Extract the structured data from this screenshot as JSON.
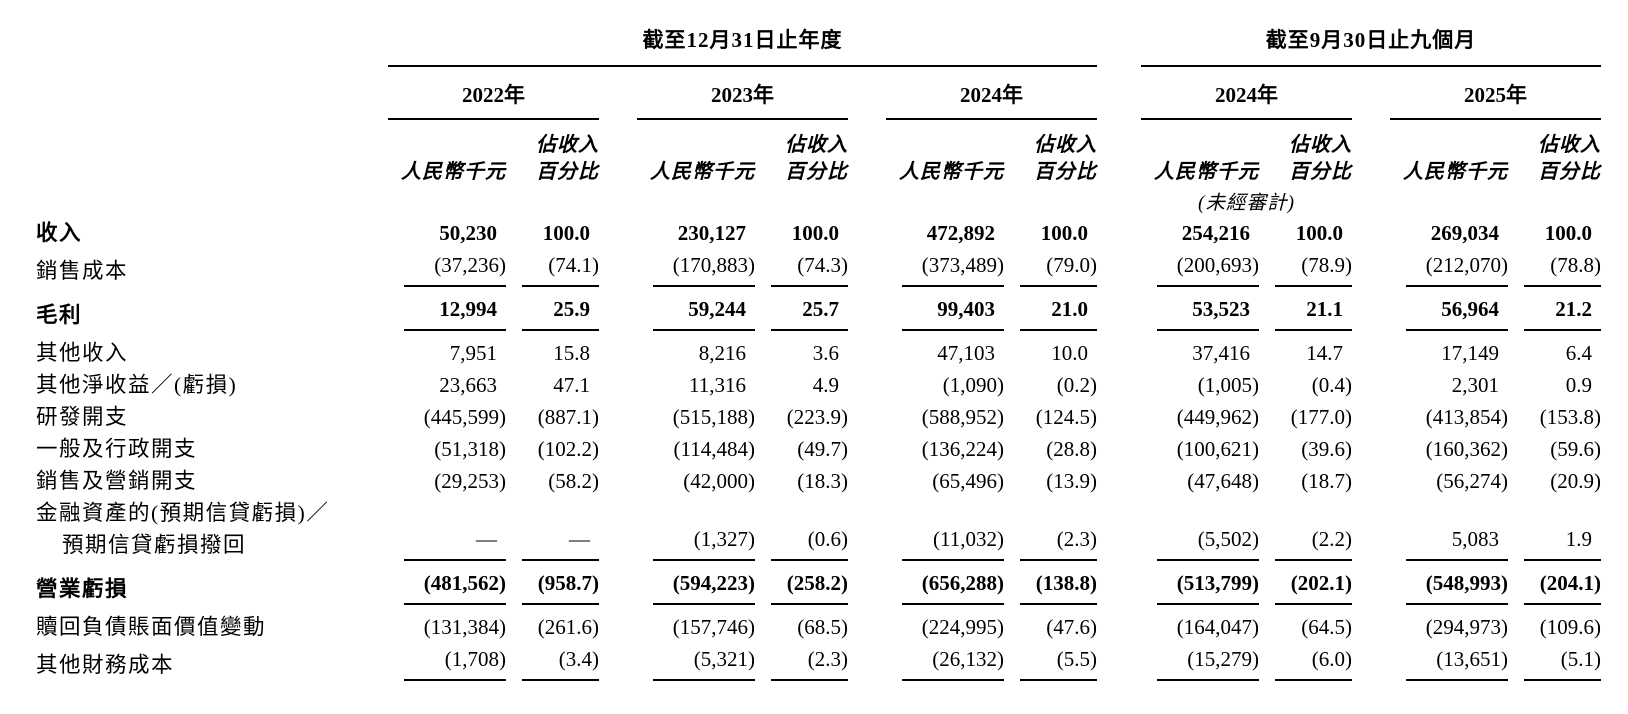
{
  "page": {
    "background": "#ffffff",
    "text_color": "#000000"
  },
  "table": {
    "period_groups": [
      {
        "title": "截至12月31日止年度",
        "years": [
          "2022年",
          "2023年",
          "2024年"
        ]
      },
      {
        "title": "截至9月30日止九個月",
        "years": [
          "2024年",
          "2025年"
        ]
      }
    ],
    "column_subheaders": {
      "amount": "人民幣千元",
      "pct_line1": "佔收入",
      "pct_line2": "百分比"
    },
    "unaudited_note": "(未經審計)",
    "rows": [
      {
        "label": "收入",
        "bold": true,
        "rule_after": false,
        "values": [
          "50,230",
          "100.0",
          "230,127",
          "100.0",
          "472,892",
          "100.0",
          "254,216",
          "100.0",
          "269,034",
          "100.0"
        ]
      },
      {
        "label": "銷售成本",
        "bold": false,
        "rule_after": true,
        "values": [
          "(37,236)",
          "(74.1)",
          "(170,883)",
          "(74.3)",
          "(373,489)",
          "(79.0)",
          "(200,693)",
          "(78.9)",
          "(212,070)",
          "(78.8)"
        ]
      },
      {
        "label": "毛利",
        "bold": true,
        "rule_after": true,
        "values": [
          "12,994",
          "25.9",
          "59,244",
          "25.7",
          "99,403",
          "21.0",
          "53,523",
          "21.1",
          "56,964",
          "21.2"
        ]
      },
      {
        "label": "其他收入",
        "bold": false,
        "rule_after": false,
        "values": [
          "7,951",
          "15.8",
          "8,216",
          "3.6",
          "47,103",
          "10.0",
          "37,416",
          "14.7",
          "17,149",
          "6.4"
        ]
      },
      {
        "label": "其他淨收益／(虧損)",
        "bold": false,
        "rule_after": false,
        "values": [
          "23,663",
          "47.1",
          "11,316",
          "4.9",
          "(1,090)",
          "(0.2)",
          "(1,005)",
          "(0.4)",
          "2,301",
          "0.9"
        ]
      },
      {
        "label": "研發開支",
        "bold": false,
        "rule_after": false,
        "values": [
          "(445,599)",
          "(887.1)",
          "(515,188)",
          "(223.9)",
          "(588,952)",
          "(124.5)",
          "(449,962)",
          "(177.0)",
          "(413,854)",
          "(153.8)"
        ]
      },
      {
        "label": "一般及行政開支",
        "bold": false,
        "rule_after": false,
        "values": [
          "(51,318)",
          "(102.2)",
          "(114,484)",
          "(49.7)",
          "(136,224)",
          "(28.8)",
          "(100,621)",
          "(39.6)",
          "(160,362)",
          "(59.6)"
        ]
      },
      {
        "label": "銷售及營銷開支",
        "bold": false,
        "rule_after": false,
        "values": [
          "(29,253)",
          "(58.2)",
          "(42,000)",
          "(18.3)",
          "(65,496)",
          "(13.9)",
          "(47,648)",
          "(18.7)",
          "(56,274)",
          "(20.9)"
        ]
      },
      {
        "label": "金融資產的(預期信貸虧損)／",
        "label_line2": "預期信貸虧損撥回",
        "bold": false,
        "rule_after": true,
        "values": [
          "—",
          "—",
          "(1,327)",
          "(0.6)",
          "(11,032)",
          "(2.3)",
          "(5,502)",
          "(2.2)",
          "5,083",
          "1.9"
        ]
      },
      {
        "label": "營業虧損",
        "bold": true,
        "rule_after": true,
        "values": [
          "(481,562)",
          "(958.7)",
          "(594,223)",
          "(258.2)",
          "(656,288)",
          "(138.8)",
          "(513,799)",
          "(202.1)",
          "(548,993)",
          "(204.1)"
        ]
      },
      {
        "label": "贖回負債賬面價值變動",
        "bold": false,
        "rule_after": false,
        "values": [
          "(131,384)",
          "(261.6)",
          "(157,746)",
          "(68.5)",
          "(224,995)",
          "(47.6)",
          "(164,047)",
          "(64.5)",
          "(294,973)",
          "(109.6)"
        ]
      },
      {
        "label": "其他財務成本",
        "bold": false,
        "rule_after": true,
        "values": [
          "(1,708)",
          "(3.4)",
          "(5,321)",
          "(2.3)",
          "(26,132)",
          "(5.5)",
          "(15,279)",
          "(6.0)",
          "(13,651)",
          "(5.1)"
        ]
      }
    ]
  }
}
